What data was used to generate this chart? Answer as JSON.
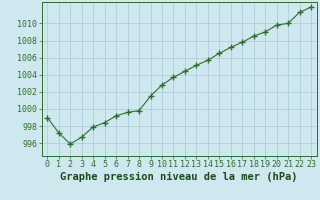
{
  "x": [
    0,
    1,
    2,
    3,
    4,
    5,
    6,
    7,
    8,
    9,
    10,
    11,
    12,
    13,
    14,
    15,
    16,
    17,
    18,
    19,
    20,
    21,
    22,
    23
  ],
  "y": [
    999.0,
    997.2,
    995.9,
    996.7,
    997.9,
    998.4,
    999.2,
    999.6,
    999.8,
    1001.5,
    1002.8,
    1003.7,
    1004.4,
    1005.1,
    1005.7,
    1006.5,
    1007.2,
    1007.8,
    1008.5,
    1009.0,
    1009.8,
    1010.0,
    1011.3,
    1011.9
  ],
  "line_color": "#2d6e2d",
  "marker": "+",
  "marker_size": 4,
  "marker_linewidth": 1.0,
  "linewidth": 0.8,
  "bg_color": "#cfe8ef",
  "grid_color": "#a8c8d8",
  "xlabel": "Graphe pression niveau de la mer (hPa)",
  "xlabel_color": "#1a4a1a",
  "tick_color": "#2d6e2d",
  "ylim": [
    994.5,
    1012.5
  ],
  "yticks": [
    996,
    998,
    1000,
    1002,
    1004,
    1006,
    1008,
    1010
  ],
  "xlim": [
    -0.5,
    23.5
  ],
  "xticks": [
    0,
    1,
    2,
    3,
    4,
    5,
    6,
    7,
    8,
    9,
    10,
    11,
    12,
    13,
    14,
    15,
    16,
    17,
    18,
    19,
    20,
    21,
    22,
    23
  ],
  "xtick_labels": [
    "0",
    "1",
    "2",
    "3",
    "4",
    "5",
    "6",
    "7",
    "8",
    "9",
    "10",
    "11",
    "12",
    "13",
    "14",
    "15",
    "16",
    "17",
    "18",
    "19",
    "20",
    "21",
    "22",
    "23"
  ],
  "xlabel_fontsize": 7.5,
  "tick_fontsize": 6.0
}
